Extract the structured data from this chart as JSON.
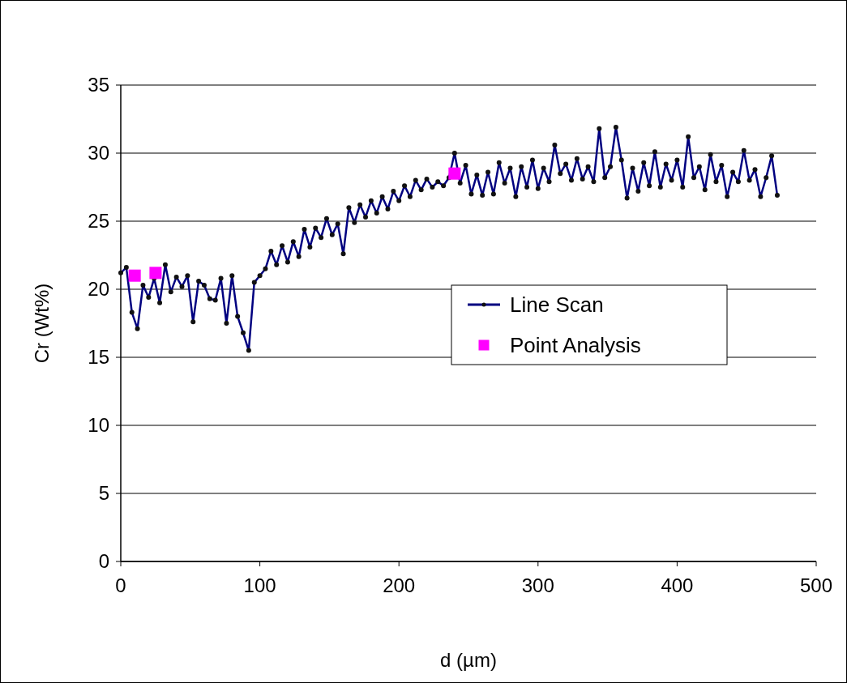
{
  "chart_data": {
    "type": "line",
    "xlabel": "d (µm)",
    "ylabel": "Cr (Wt%)",
    "xlim": [
      0,
      500
    ],
    "xticks": [
      0,
      100,
      200,
      300,
      400,
      500
    ],
    "ylim": [
      0,
      35
    ],
    "yticks": [
      0,
      5,
      10,
      15,
      20,
      25,
      30,
      35
    ],
    "grid": "y",
    "legend": "right",
    "series": [
      {
        "name": "Line Scan",
        "color": "#000080",
        "marker": "circle",
        "line_style": "solid",
        "x": [
          0,
          4,
          8,
          12,
          16,
          20,
          24,
          28,
          32,
          36,
          40,
          44,
          48,
          52,
          56,
          60,
          64,
          68,
          72,
          76,
          80,
          84,
          88,
          92,
          96,
          100,
          104,
          108,
          112,
          116,
          120,
          124,
          128,
          132,
          136,
          140,
          144,
          148,
          152,
          156,
          160,
          164,
          168,
          172,
          176,
          180,
          184,
          188,
          192,
          196,
          200,
          204,
          208,
          212,
          216,
          220,
          224,
          228,
          232,
          236,
          240,
          244,
          248,
          252,
          256,
          260,
          264,
          268,
          272,
          276,
          280,
          284,
          288,
          292,
          296,
          300,
          304,
          308,
          312,
          316,
          320,
          324,
          328,
          332,
          336,
          340,
          344,
          348,
          352,
          356,
          360,
          364,
          368,
          372,
          376,
          380,
          384,
          388,
          392,
          396,
          400,
          404,
          408,
          412,
          416,
          420,
          424,
          428,
          432,
          436,
          440,
          444,
          448,
          452,
          456,
          460,
          464,
          468,
          472
        ],
        "values": [
          21.2,
          21.6,
          18.3,
          17.1,
          20.3,
          19.4,
          20.8,
          19.0,
          21.8,
          19.8,
          20.9,
          20.2,
          21.0,
          17.6,
          20.6,
          20.3,
          19.3,
          19.2,
          20.8,
          17.5,
          21.0,
          18.0,
          16.8,
          15.5,
          20.5,
          21.0,
          21.5,
          22.8,
          21.8,
          23.2,
          22.0,
          23.5,
          22.4,
          24.4,
          23.1,
          24.5,
          23.8,
          25.2,
          24.0,
          24.8,
          22.6,
          26.0,
          24.9,
          26.2,
          25.3,
          26.5,
          25.6,
          26.8,
          25.9,
          27.2,
          26.5,
          27.6,
          26.8,
          28.0,
          27.3,
          28.1,
          27.5,
          27.9,
          27.6,
          28.2,
          30.0,
          27.8,
          29.1,
          27.0,
          28.4,
          26.9,
          28.6,
          27.0,
          29.3,
          27.8,
          28.9,
          26.8,
          29.0,
          27.5,
          29.5,
          27.4,
          28.9,
          27.9,
          30.6,
          28.5,
          29.2,
          28.0,
          29.6,
          28.1,
          29.0,
          27.9,
          31.8,
          28.2,
          29.0,
          31.9,
          29.5,
          26.7,
          28.9,
          27.2,
          29.3,
          27.6,
          30.1,
          27.5,
          29.2,
          28.0,
          29.5,
          27.5,
          31.2,
          28.2,
          29.0,
          27.3,
          29.9,
          27.9,
          29.1,
          26.8,
          28.6,
          27.9,
          30.2,
          28.0,
          28.8,
          26.8,
          28.2,
          29.8,
          26.9
        ]
      },
      {
        "name": "Point Analysis",
        "type": "scatter",
        "color": "#ff00ff",
        "marker": "square",
        "x": [
          10,
          25,
          240
        ],
        "values": [
          21.0,
          21.2,
          28.5
        ]
      }
    ]
  }
}
